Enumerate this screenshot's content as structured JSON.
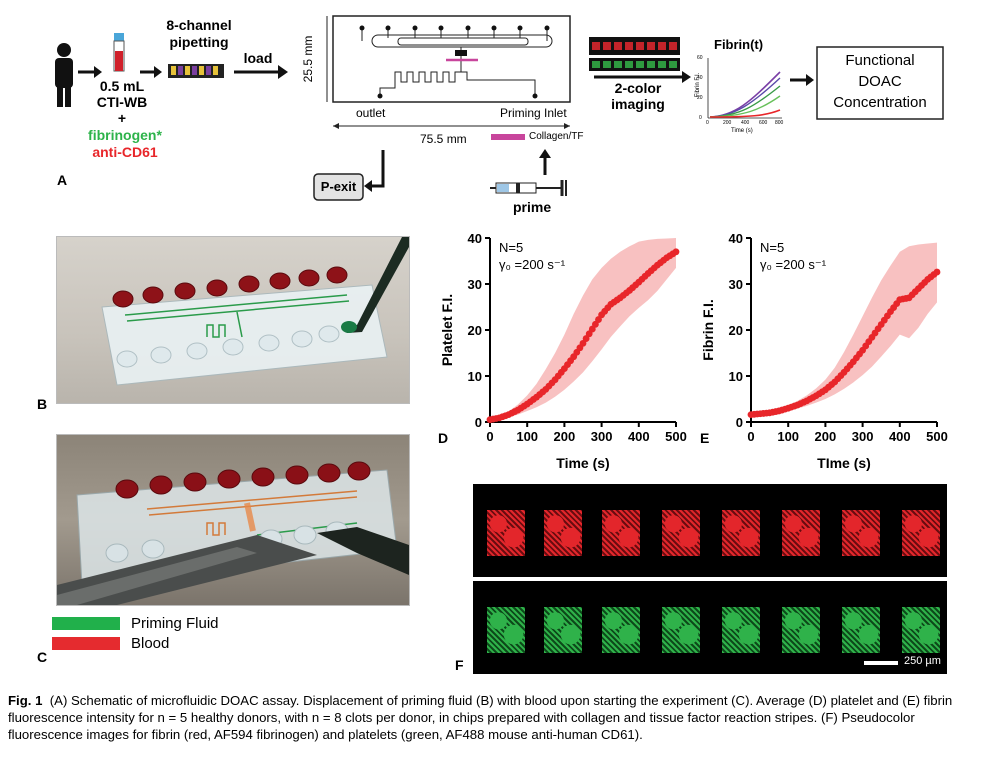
{
  "figure": {
    "panel_a": {
      "sample_volume": "0.5 mL",
      "sample_type": "CTI-WB",
      "plus": "+",
      "fibrinogen": "fibrinogen*",
      "anti_cd61": "anti-CD61",
      "pipetting_line1": "8-channel",
      "pipetting_line2": "pipetting",
      "load": "load",
      "height_dim": "25.5 mm",
      "width_dim": "75.5 mm",
      "outlet": "outlet",
      "priming_inlet": "Priming Inlet",
      "collagen_tf": "Collagen/TF",
      "p_exit": "P-exit",
      "prime": "prime",
      "imaging_line1": "2-color",
      "imaging_line2": "imaging",
      "fibrin_t": "Fibrin(t)",
      "mini_ylabel": "Fibrin F.I.",
      "mini_xlabel": "Time (s)",
      "mini_yticks": [
        "0",
        "20",
        "40",
        "60"
      ],
      "mini_xticks": [
        "0",
        "200",
        "400",
        "600",
        "800"
      ],
      "functional_line1": "Functional",
      "functional_line2": "DOAC",
      "functional_line3": "Concentration",
      "letter": "A",
      "colors": {
        "green": "#2db34a",
        "red": "#e8262a",
        "magenta": "#c8459c"
      }
    },
    "panel_b": {
      "letter": "B"
    },
    "panel_c": {
      "letter": "C",
      "legend": [
        {
          "label": "Priming Fluid",
          "color": "#21b04b"
        },
        {
          "label": "Blood",
          "color": "#e52b2f"
        }
      ]
    },
    "panel_d": {
      "letter": "D",
      "n_label": "N=5",
      "shear_label": "γ₀ =200 s⁻¹",
      "ylabel": "Platelet  F.I.",
      "xlabel": "Time (s)"
    },
    "panel_e": {
      "letter": "E",
      "n_label": "N=5",
      "shear_label": "γ₀ =200 s⁻¹",
      "ylabel": "Fibrin  F.I.",
      "xlabel": "TIme (s)"
    },
    "panel_f": {
      "letter": "F",
      "scale_label": "250 µm"
    },
    "caption": {
      "fig_label": "Fig. 1",
      "text": "(A) Schematic of microfluidic DOAC assay. Displacement of priming fluid (B) with blood upon starting the experiment (C). Average (D) platelet and (E) fibrin fluorescence intensity for n = 5 healthy donors, with n = 8 clots per donor, in chips prepared with collagen and tissue factor reaction stripes. (F) Pseudocolor fluorescence images for fibrin (red, AF594 fibrinogen) and platelets (green, AF488 mouse anti-human CD61)."
    }
  },
  "chart_data": [
    {
      "type": "line",
      "panel": "D",
      "xlabel": "Time (s)",
      "ylabel": "Platelet  F.I.",
      "xlim": [
        0,
        500
      ],
      "ylim": [
        0,
        40
      ],
      "xticks": [
        0,
        100,
        200,
        300,
        400,
        500
      ],
      "yticks": [
        0,
        10,
        20,
        30,
        40
      ],
      "series": [
        {
          "x": [
            0,
            25,
            50,
            75,
            100,
            125,
            150,
            175,
            200,
            225,
            250,
            275,
            300,
            325,
            350,
            375,
            400,
            425,
            450,
            475,
            500
          ],
          "mean": [
            0.5,
            0.9,
            1.6,
            2.6,
            3.9,
            5.4,
            7.1,
            9.2,
            11.6,
            14.2,
            17.1,
            20.2,
            23.3,
            25.6,
            27.0,
            28.6,
            30.4,
            32.3,
            34.1,
            35.7,
            37.0
          ],
          "upper": [
            0.8,
            1.3,
            2.3,
            3.8,
            5.8,
            8.3,
            11.5,
            15.0,
            19.0,
            23.5,
            27.5,
            31.0,
            33.5,
            35.5,
            37.0,
            38.2,
            39.2,
            39.6,
            39.8,
            39.9,
            40.0
          ],
          "lower": [
            0.3,
            0.6,
            1.0,
            1.6,
            2.4,
            3.2,
            4.2,
            5.5,
            7.0,
            8.8,
            10.8,
            13.2,
            15.8,
            18.5,
            20.8,
            23.0,
            24.8,
            26.5,
            28.5,
            31.0,
            33.5
          ]
        }
      ]
    },
    {
      "type": "line",
      "panel": "E",
      "xlabel": "TIme (s)",
      "ylabel": "Fibrin  F.I.",
      "xlim": [
        0,
        500
      ],
      "ylim": [
        0,
        40
      ],
      "xticks": [
        0,
        100,
        200,
        300,
        400,
        500
      ],
      "yticks": [
        0,
        10,
        20,
        30,
        40
      ],
      "series": [
        {
          "x": [
            0,
            25,
            50,
            75,
            100,
            125,
            150,
            175,
            200,
            225,
            250,
            275,
            300,
            325,
            350,
            375,
            400,
            425,
            450,
            475,
            500
          ],
          "mean": [
            1.6,
            1.8,
            2.0,
            2.4,
            3.0,
            3.7,
            4.6,
            5.7,
            7.0,
            8.7,
            10.8,
            13.1,
            15.6,
            18.4,
            21.2,
            24.0,
            26.6,
            27.0,
            29.0,
            31.0,
            32.6
          ],
          "upper": [
            1.8,
            2.1,
            2.4,
            2.9,
            3.6,
            4.6,
            5.8,
            7.3,
            9.2,
            11.8,
            15.2,
            19.0,
            23.0,
            27.0,
            30.8,
            34.0,
            37.0,
            38.2,
            38.6,
            38.8,
            39.0
          ],
          "lower": [
            1.4,
            1.5,
            1.7,
            2.0,
            2.4,
            2.9,
            3.5,
            4.2,
            5.0,
            6.0,
            7.2,
            8.6,
            10.2,
            12.0,
            14.2,
            16.5,
            19.0,
            18.2,
            20.5,
            23.5,
            26.0
          ]
        }
      ]
    }
  ]
}
